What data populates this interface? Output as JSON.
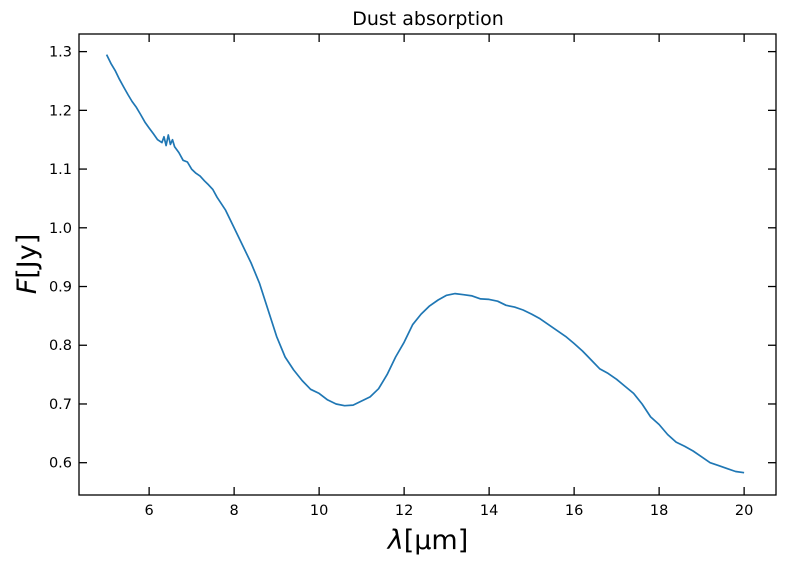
{
  "chart_data": {
    "type": "line",
    "title": "Dust absorption",
    "xlabel": {
      "symbol": "λ",
      "unit": "[μm]"
    },
    "ylabel": {
      "symbol": "F",
      "unit": "[Jy]"
    },
    "xlim": [
      4.35,
      20.75
    ],
    "ylim": [
      0.545,
      1.33
    ],
    "xticks": [
      6,
      8,
      10,
      12,
      14,
      16,
      18,
      20
    ],
    "xtick_labels": [
      "6",
      "8",
      "10",
      "12",
      "14",
      "16",
      "18",
      "20"
    ],
    "yticks": [
      0.6,
      0.7,
      0.8,
      0.9,
      1.0,
      1.1,
      1.2,
      1.3
    ],
    "ytick_labels": [
      "0.6",
      "0.7",
      "0.8",
      "0.9",
      "1.0",
      "1.1",
      "1.2",
      "1.3"
    ],
    "grid": false,
    "series": [
      {
        "color": "#1f77b4",
        "x": [
          5.0,
          5.1,
          5.2,
          5.3,
          5.4,
          5.5,
          5.6,
          5.7,
          5.8,
          5.9,
          6.0,
          6.1,
          6.2,
          6.3,
          6.35,
          6.4,
          6.45,
          6.5,
          6.55,
          6.6,
          6.7,
          6.8,
          6.9,
          7.0,
          7.1,
          7.2,
          7.3,
          7.4,
          7.5,
          7.6,
          7.8,
          8.0,
          8.2,
          8.4,
          8.6,
          8.8,
          9.0,
          9.2,
          9.4,
          9.6,
          9.8,
          10.0,
          10.2,
          10.4,
          10.6,
          10.8,
          11.0,
          11.2,
          11.4,
          11.6,
          11.8,
          12.0,
          12.2,
          12.4,
          12.6,
          12.8,
          13.0,
          13.2,
          13.4,
          13.6,
          13.8,
          14.0,
          14.2,
          14.4,
          14.6,
          14.8,
          15.0,
          15.2,
          15.4,
          15.6,
          15.8,
          16.0,
          16.2,
          16.4,
          16.6,
          16.8,
          17.0,
          17.2,
          17.4,
          17.6,
          17.8,
          18.0,
          18.2,
          18.4,
          18.6,
          18.8,
          19.0,
          19.2,
          19.4,
          19.6,
          19.8,
          20.0
        ],
        "y": [
          1.295,
          1.28,
          1.268,
          1.253,
          1.24,
          1.227,
          1.215,
          1.205,
          1.193,
          1.18,
          1.17,
          1.16,
          1.15,
          1.145,
          1.155,
          1.14,
          1.158,
          1.142,
          1.15,
          1.138,
          1.128,
          1.115,
          1.112,
          1.1,
          1.093,
          1.088,
          1.08,
          1.073,
          1.065,
          1.052,
          1.03,
          1.0,
          0.97,
          0.94,
          0.905,
          0.86,
          0.815,
          0.78,
          0.758,
          0.74,
          0.725,
          0.718,
          0.707,
          0.7,
          0.697,
          0.698,
          0.705,
          0.712,
          0.726,
          0.75,
          0.78,
          0.805,
          0.835,
          0.853,
          0.867,
          0.877,
          0.885,
          0.888,
          0.886,
          0.884,
          0.879,
          0.878,
          0.875,
          0.868,
          0.865,
          0.86,
          0.853,
          0.845,
          0.835,
          0.825,
          0.815,
          0.803,
          0.79,
          0.775,
          0.76,
          0.752,
          0.742,
          0.73,
          0.718,
          0.7,
          0.678,
          0.665,
          0.648,
          0.635,
          0.628,
          0.62,
          0.61,
          0.6,
          0.595,
          0.59,
          0.585,
          0.583
        ]
      }
    ]
  }
}
